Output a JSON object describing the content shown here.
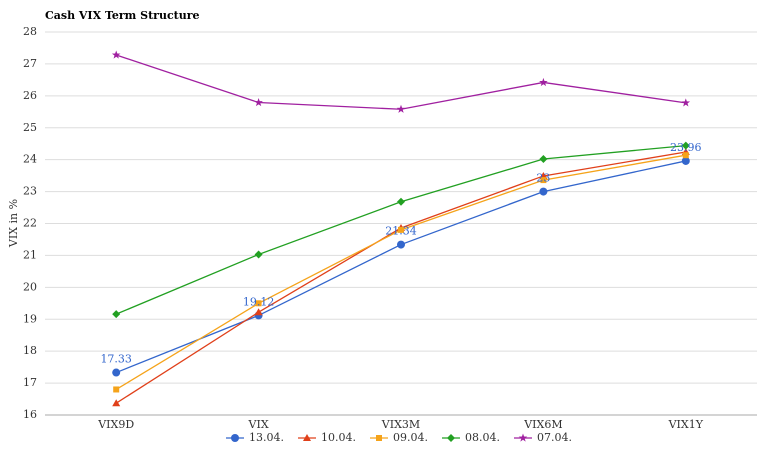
{
  "chart_data": {
    "type": "line",
    "title": "Cash VIX Term Structure",
    "y_label": "VIX in %",
    "categories": [
      "VIX9D",
      "VIX",
      "VIX3M",
      "VIX6M",
      "VIX1Y"
    ],
    "series": [
      {
        "name": "13.04.",
        "color": "#3366cc",
        "marker": "circle",
        "show_labels": true,
        "values": [
          17.33,
          19.12,
          21.34,
          23,
          23.96
        ]
      },
      {
        "name": "10.04.",
        "color": "#e0401a",
        "marker": "triangle",
        "values": [
          16.37,
          19.22,
          21.86,
          23.49,
          24.24
        ]
      },
      {
        "name": "09.04.",
        "color": "#f5a31a",
        "marker": "square",
        "values": [
          16.8,
          19.5,
          21.8,
          23.36,
          24.14
        ]
      },
      {
        "name": "08.04.",
        "color": "#22a022",
        "marker": "diamond",
        "values": [
          19.16,
          21.03,
          22.68,
          24.02,
          24.44
        ]
      },
      {
        "name": "07.04.",
        "color": "#a020a0",
        "marker": "star",
        "values": [
          27.28,
          25.79,
          25.58,
          26.42,
          25.78
        ]
      }
    ],
    "ylim": [
      16,
      28
    ],
    "yticks": [
      16,
      17,
      18,
      19,
      20,
      21,
      22,
      23,
      24,
      25,
      26,
      27,
      28
    ],
    "grid": true,
    "legend": "bottom"
  }
}
